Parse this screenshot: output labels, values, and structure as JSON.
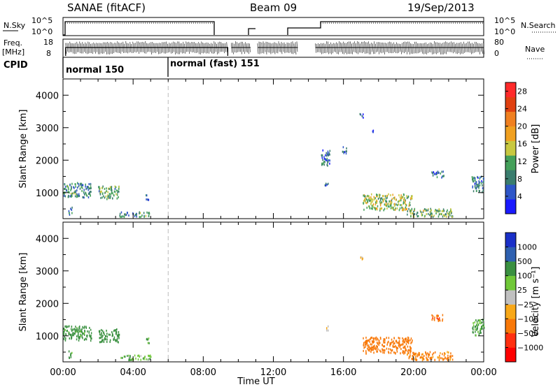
{
  "header": {
    "station": "SANAE (fitACF)",
    "beam": "Beam 09",
    "date": "19/Sep/2013"
  },
  "strip_labels": {
    "nsky": "N.Sky",
    "nsky_ticks": [
      "10^5",
      "10^0"
    ],
    "nsearch": "N.Search",
    "nsearch_ticks": [
      "10^5",
      "10^0"
    ],
    "freq_top": "Freq.",
    "freq_unit": "[MHz]",
    "freq_ticks": [
      "18",
      "8"
    ],
    "nave": "Nave",
    "nave_ticks": [
      "80",
      "0"
    ],
    "cpid": "CPID",
    "cpid_modes": [
      "normal 150",
      "normal (fast) 151"
    ]
  },
  "x_axis": {
    "label": "Time UT",
    "ticks": [
      "00:00",
      "04:00",
      "08:00",
      "12:00",
      "16:00",
      "20:00",
      "00:00"
    ]
  },
  "colors": {
    "power": [
      "#1a1aff",
      "#2e56c8",
      "#3a7d6e",
      "#44a05a",
      "#c8c840",
      "#f0a020",
      "#f08020",
      "#e04010",
      "#ff2a2a"
    ],
    "velocity": [
      "#ff0000",
      "#ff3010",
      "#f87808",
      "#f8a818",
      "#c0c0c0",
      "#70c838",
      "#3a9040",
      "#2e60b0",
      "#1a30c8"
    ],
    "dash_line": "#bbbbbb"
  },
  "chart_data": [
    {
      "type": "heatmap",
      "title": "",
      "xlabel": "Time UT",
      "ylabel": "Slant Range [km]",
      "xlim": [
        0,
        24
      ],
      "ylim": [
        200,
        4500
      ],
      "yticks": [
        "1000",
        "2000",
        "3000",
        "4000"
      ],
      "colorbar": {
        "label": "Power [dB]",
        "ticks": [
          "4",
          "8",
          "12",
          "16",
          "20",
          "24",
          "28"
        ],
        "range": [
          0,
          30
        ]
      },
      "clusters": [
        {
          "t0": 0.0,
          "t1": 1.6,
          "r0": 850,
          "r1": 1300,
          "value": 9
        },
        {
          "t0": 2.0,
          "t1": 3.2,
          "r0": 800,
          "r1": 1200,
          "value": 11
        },
        {
          "t0": 0.3,
          "t1": 0.5,
          "r0": 300,
          "r1": 550,
          "value": 6
        },
        {
          "t0": 3.2,
          "t1": 5.0,
          "r0": 250,
          "r1": 400,
          "value": 10
        },
        {
          "t0": 4.7,
          "t1": 4.9,
          "r0": 750,
          "r1": 950,
          "value": 6
        },
        {
          "t0": 14.7,
          "t1": 15.2,
          "r0": 1800,
          "r1": 2300,
          "value": 6
        },
        {
          "t0": 15.9,
          "t1": 16.2,
          "r0": 2200,
          "r1": 2400,
          "value": 5
        },
        {
          "t0": 14.9,
          "t1": 15.1,
          "r0": 1150,
          "r1": 1300,
          "value": 5
        },
        {
          "t0": 17.1,
          "t1": 19.9,
          "r0": 450,
          "r1": 950,
          "value": 14
        },
        {
          "t0": 19.6,
          "t1": 22.2,
          "r0": 250,
          "r1": 500,
          "value": 12
        },
        {
          "t0": 21.0,
          "t1": 21.7,
          "r0": 1450,
          "r1": 1650,
          "value": 6
        },
        {
          "t0": 23.3,
          "t1": 24.0,
          "r0": 1000,
          "r1": 1500,
          "value": 7
        },
        {
          "t0": 16.9,
          "t1": 17.1,
          "r0": 3300,
          "r1": 3450,
          "value": 4
        },
        {
          "t0": 17.6,
          "t1": 17.7,
          "r0": 2850,
          "r1": 2950,
          "value": 4
        }
      ]
    },
    {
      "type": "heatmap",
      "title": "",
      "xlabel": "Time UT",
      "ylabel": "Slant Range [km]",
      "xlim": [
        0,
        24
      ],
      "ylim": [
        200,
        4500
      ],
      "yticks": [
        "1000",
        "2000",
        "3000",
        "4000"
      ],
      "colorbar": {
        "label": "Velocity [m s⁻¹]",
        "ticks": [
          "1000",
          "500",
          "100",
          "25",
          "−25",
          "−100",
          "−500",
          "−1000"
        ]
      },
      "clusters": [
        {
          "t0": 0.0,
          "t1": 1.6,
          "r0": 850,
          "r1": 1300,
          "value": 200
        },
        {
          "t0": 2.0,
          "t1": 3.2,
          "r0": 800,
          "r1": 1200,
          "value": 300
        },
        {
          "t0": 0.3,
          "t1": 0.5,
          "r0": 300,
          "r1": 550,
          "value": 150
        },
        {
          "t0": 3.2,
          "t1": 5.0,
          "r0": 250,
          "r1": 400,
          "value": 80
        },
        {
          "t0": 4.7,
          "t1": 4.9,
          "r0": 750,
          "r1": 950,
          "value": 150
        },
        {
          "t0": 14.9,
          "t1": 15.1,
          "r0": 1150,
          "r1": 1300,
          "value": -40
        },
        {
          "t0": 17.1,
          "t1": 19.9,
          "r0": 450,
          "r1": 950,
          "value": -300
        },
        {
          "t0": 19.6,
          "t1": 22.2,
          "r0": 250,
          "r1": 500,
          "value": -150
        },
        {
          "t0": 21.0,
          "t1": 21.7,
          "r0": 1450,
          "r1": 1650,
          "value": -400
        },
        {
          "t0": 23.3,
          "t1": 24.0,
          "r0": 1000,
          "r1": 1500,
          "value": 150
        },
        {
          "t0": 16.9,
          "t1": 17.1,
          "r0": 3300,
          "r1": 3450,
          "value": -30
        }
      ]
    }
  ]
}
